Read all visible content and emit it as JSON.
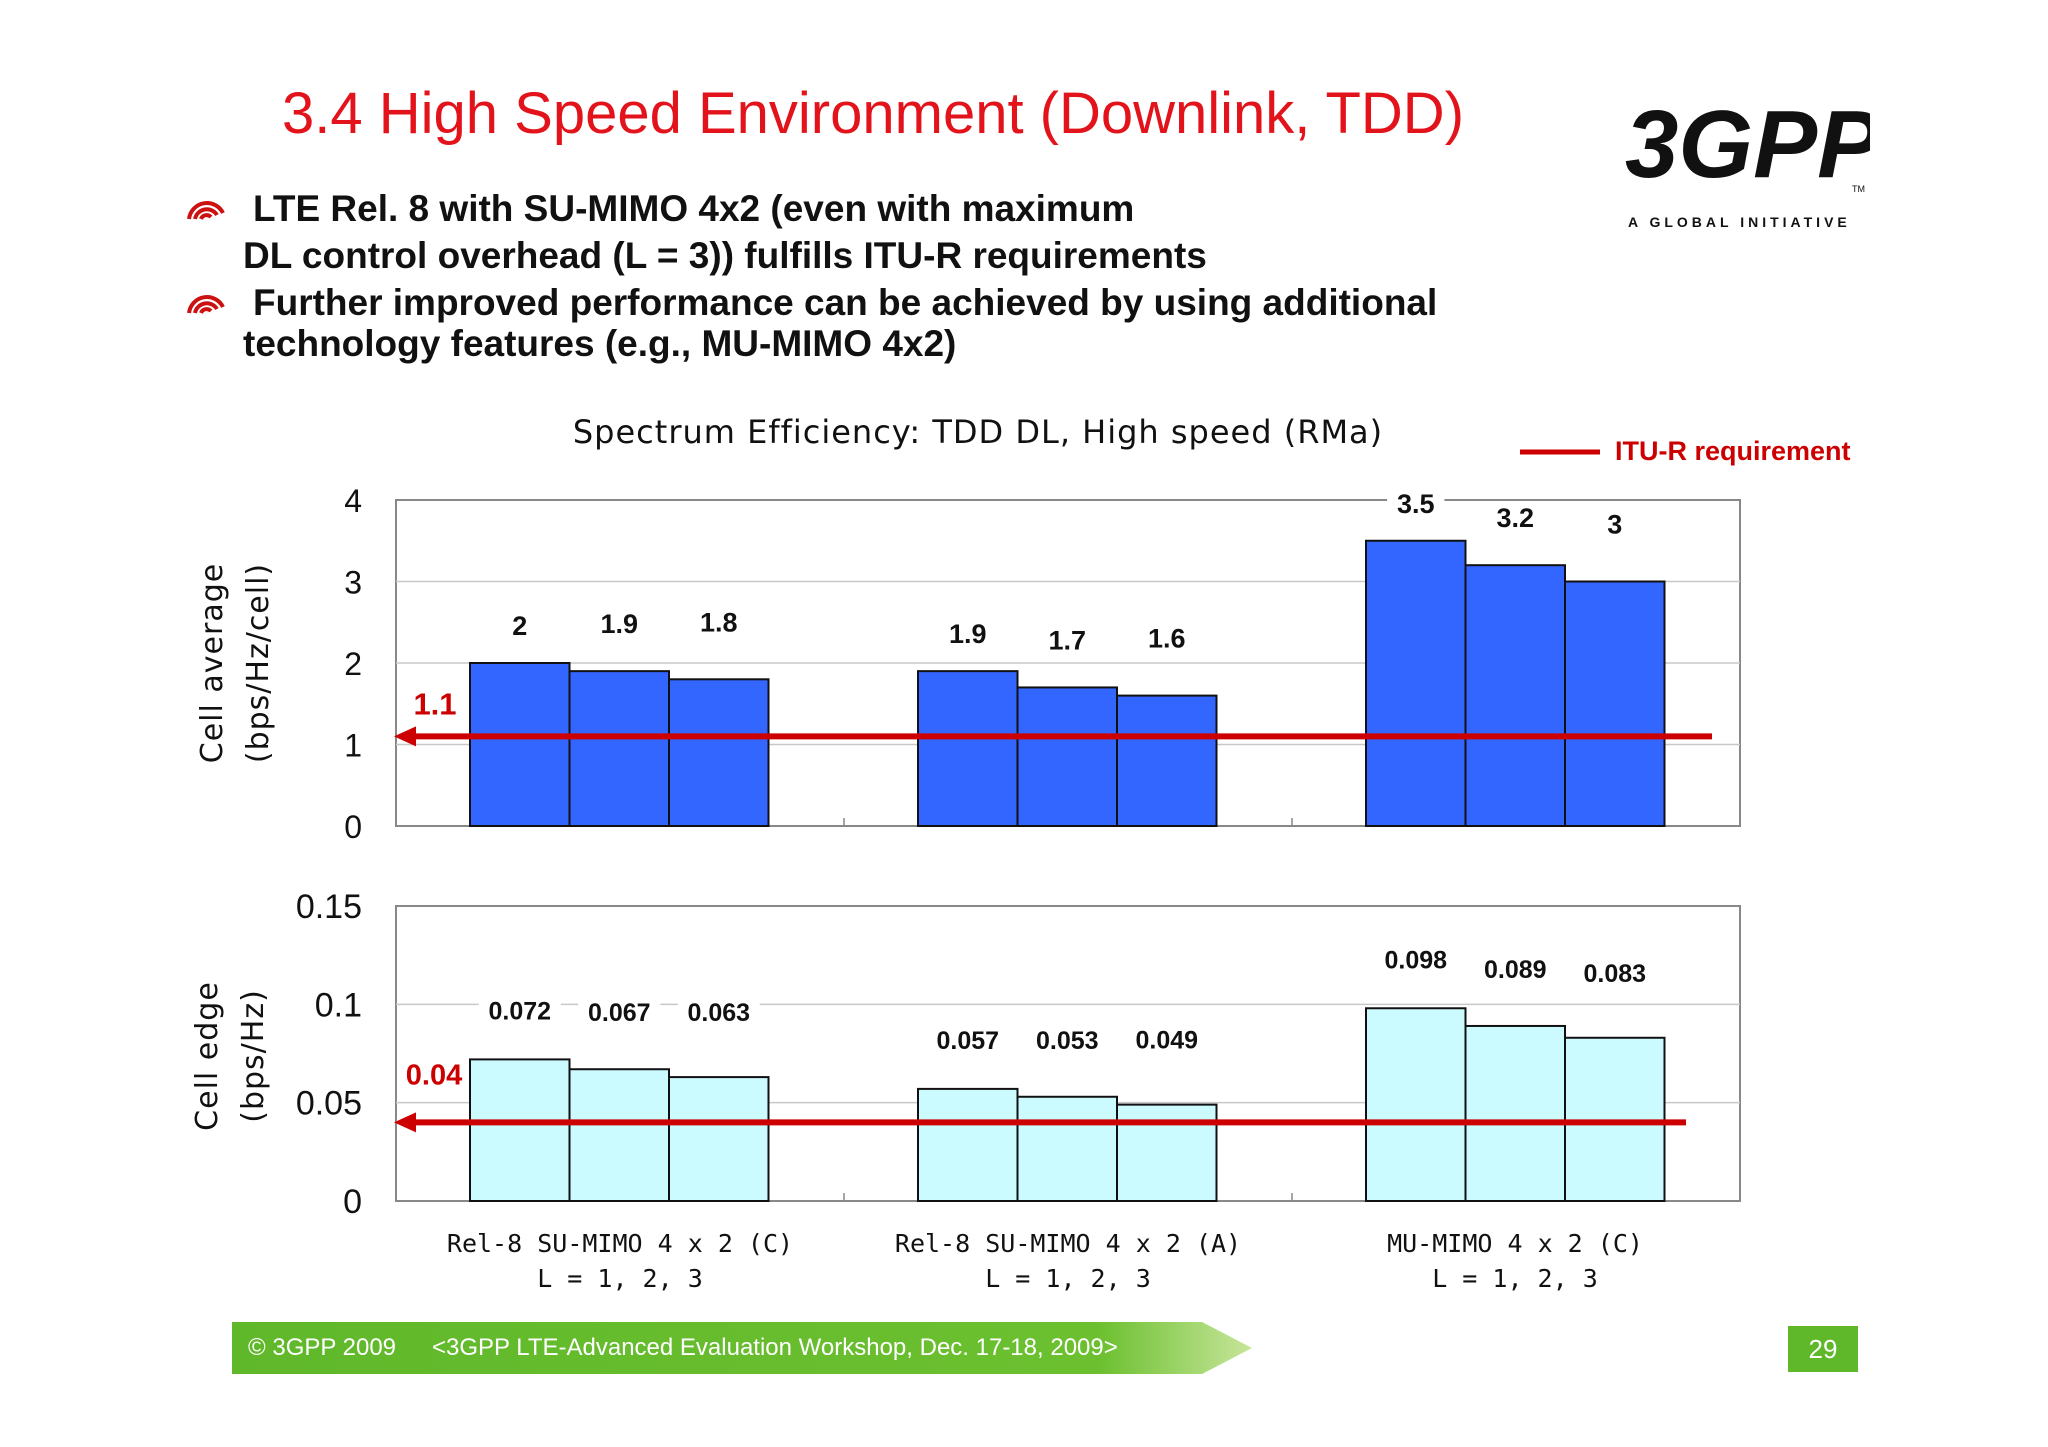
{
  "slide": {
    "title": "3.4 High Speed Environment (Downlink, TDD)",
    "bullets": [
      {
        "line1": "LTE Rel. 8 with SU-MIMO 4x2 (even with maximum",
        "line2": "DL control overhead (L = 3)) fulfills  ITU-R requirements"
      },
      {
        "line1": "Further improved performance can be achieved by using additional",
        "line2": "technology features  (e.g., MU-MIMO 4x2)"
      }
    ],
    "logo": {
      "text": "3GPP",
      "tagline": "A GLOBAL INITIATIVE",
      "tm": "TM"
    },
    "footer": {
      "copyright": "© 3GPP 2009",
      "event": "<3GPP LTE-Advanced Evaluation Workshop, Dec. 17-18, 2009>",
      "page": "29"
    }
  },
  "colors": {
    "title": "#e3131b",
    "bar_top": "#3366ff",
    "bar_bottom": "#ccfbff",
    "requirement": "#cc0000",
    "footer": "#5fb82a"
  },
  "chart_data": {
    "type": "bar",
    "title": "Spectrum Efficiency: TDD DL, High speed (RMa)",
    "legend": {
      "label": "ITU-R requirement",
      "position": "top-right"
    },
    "categories": [
      {
        "line1": "Rel-8 SU-MIMO 4 x 2 (C)",
        "line2": "L = 1, 2, 3"
      },
      {
        "line1": "Rel-8 SU-MIMO 4 x 2 (A)",
        "line2": "L = 1, 2, 3"
      },
      {
        "line1": "MU-MIMO 4 x 2 (C)",
        "line2": "L = 1, 2, 3"
      }
    ],
    "panels": [
      {
        "name": "cell-average",
        "ylabel_line1": "Cell average",
        "ylabel_line2": "(bps/Hz/cell)",
        "ylim": [
          0,
          4
        ],
        "yticks": [
          0,
          1,
          2,
          3,
          4
        ],
        "tick_labels": [
          "0",
          "1",
          "2",
          "3",
          "4"
        ],
        "values": [
          [
            2,
            1.9,
            1.8
          ],
          [
            1.9,
            1.7,
            1.6
          ],
          [
            3.5,
            3.2,
            3
          ]
        ],
        "value_labels": [
          [
            "2",
            "1.9",
            "1.8"
          ],
          [
            "1.9",
            "1.7",
            "1.6"
          ],
          [
            "3.5",
            "3.2",
            "3"
          ]
        ],
        "requirement": 1.1,
        "requirement_label": "1.1",
        "grid": true
      },
      {
        "name": "cell-edge",
        "ylabel_line1": "Cell edge",
        "ylabel_line2": "(bps/Hz)",
        "ylim": [
          0,
          0.15
        ],
        "yticks": [
          0,
          0.05,
          0.1,
          0.15
        ],
        "tick_labels": [
          "0",
          "0.05",
          "0.1",
          "0.15"
        ],
        "values": [
          [
            0.072,
            0.067,
            0.063
          ],
          [
            0.057,
            0.053,
            0.049
          ],
          [
            0.098,
            0.089,
            0.083
          ]
        ],
        "value_labels": [
          [
            "0.072",
            "0.067",
            "0.063"
          ],
          [
            "0.057",
            "0.053",
            "0.049"
          ],
          [
            "0.098",
            "0.089",
            "0.083"
          ]
        ],
        "requirement": 0.04,
        "requirement_label": "0.04",
        "grid": true
      }
    ]
  }
}
